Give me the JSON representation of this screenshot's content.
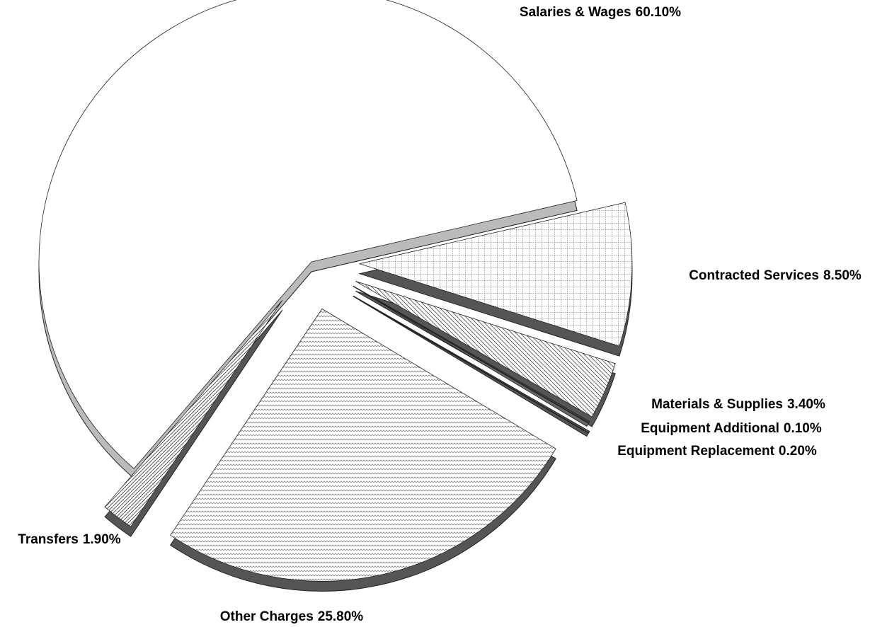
{
  "chart_data": {
    "type": "pie",
    "categories": [
      "Salaries & Wages",
      "Contracted Services",
      "Materials & Supplies",
      "Equipment Additional",
      "Equipment Replacement",
      "Other Charges",
      "Transfers"
    ],
    "values": [
      60.1,
      8.5,
      3.4,
      0.1,
      0.2,
      25.8,
      1.9
    ],
    "value_labels": [
      "60.10%",
      "8.50%",
      "3.40%",
      "0.10%",
      "0.20%",
      "25.80%",
      "1.90%"
    ],
    "colors": [
      "#ffffff",
      "#f2f2f2",
      "#e0e0e0",
      "#444444",
      "#666666",
      "#e8e8e8",
      "#f0f0f0"
    ]
  }
}
